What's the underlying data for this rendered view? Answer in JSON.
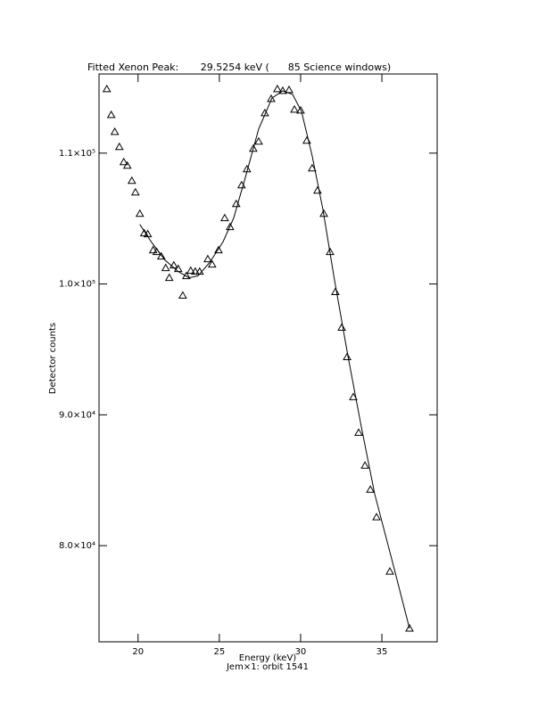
{
  "chart_data": {
    "type": "scatter",
    "title": "Fitted Xenon Peak:       29.5254 keV (      85 Science windows)",
    "x_label": "Energy (keV)",
    "subtitle": "Jem×1: orbit 1541",
    "y_label": "Detector counts",
    "xlim": [
      17.6,
      38.4
    ],
    "ylim": [
      72650,
      116050
    ],
    "xticks": [
      20,
      25,
      30,
      35
    ],
    "yticks": [
      {
        "value": 80000,
        "label": "8.0×10⁴"
      },
      {
        "value": 90000,
        "label": "9.0×10⁴"
      },
      {
        "value": 100000,
        "label": "1.0×10⁵"
      },
      {
        "value": 110000,
        "label": "1.1×10⁵"
      }
    ],
    "series": [
      {
        "marker": "triangle",
        "color": "#000000",
        "x": [
          18.08,
          18.35,
          18.57,
          18.85,
          19.12,
          19.34,
          19.62,
          19.84,
          20.11,
          20.38,
          20.6,
          20.93,
          21.15,
          21.43,
          21.7,
          21.92,
          22.2,
          22.47,
          22.75,
          22.97,
          23.24,
          23.52,
          23.79,
          24.29,
          24.56,
          24.95,
          25.33,
          25.66,
          26.04,
          26.37,
          26.7,
          27.09,
          27.42,
          27.8,
          28.19,
          28.57,
          28.9,
          29.29,
          29.62,
          30.0,
          30.38,
          30.71,
          31.04,
          31.43,
          31.81,
          32.14,
          32.53,
          32.86,
          33.24,
          33.57,
          33.96,
          34.29,
          34.67,
          35.49,
          36.7
        ],
        "values": [
          114898,
          112926,
          111633,
          110477,
          109320,
          109048,
          107891,
          107007,
          105374,
          103878,
          103810,
          102585,
          102449,
          102109,
          101225,
          100476,
          101429,
          101156,
          99116,
          100612,
          101020,
          100952,
          100952,
          101905,
          101497,
          102585,
          105034,
          104354,
          106123,
          107551,
          108776,
          110340,
          110885,
          113062,
          114150,
          114898,
          114762,
          114830,
          113334,
          113266,
          110953,
          108844,
          107143,
          105374,
          102449,
          99388,
          96667,
          94422,
          91361,
          88639,
          86122,
          84286,
          82177,
          78027,
          73673
        ]
      },
      {
        "marker": "line",
        "color": "#000000",
        "x": [
          20.11,
          20.82,
          21.65,
          22.47,
          23.13,
          23.68,
          24.4,
          25.22,
          25.88,
          26.59,
          27.42,
          28.24,
          28.9,
          29.51,
          30.05,
          30.71,
          31.37,
          32.09,
          32.91,
          33.74,
          34.56,
          35.66,
          36.7
        ],
        "values": [
          104558,
          103197,
          101837,
          100952,
          100476,
          100612,
          101633,
          103197,
          105034,
          108095,
          111837,
          114218,
          114762,
          114490,
          113198,
          109796,
          105714,
          100272,
          94490,
          89047,
          83945,
          78707,
          73673
        ]
      }
    ]
  }
}
